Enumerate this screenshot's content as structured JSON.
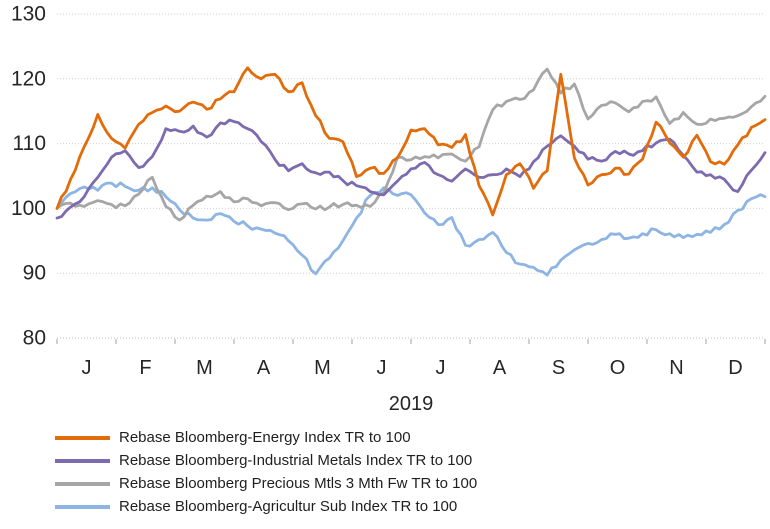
{
  "figure": {
    "background_color": "#ffffff",
    "text_color": "#262626"
  },
  "chart_data": {
    "type": "line",
    "title": "",
    "x_axis": {
      "labels": [
        "J",
        "F",
        "M",
        "A",
        "M",
        "J",
        "J",
        "A",
        "S",
        "O",
        "N",
        "D"
      ],
      "year_label": "2019",
      "tick_count": 13
    },
    "y_axis": {
      "min": 80,
      "max": 130,
      "tick_step": 10,
      "tick_labels": [
        "80",
        "90",
        "100",
        "110",
        "120",
        "130"
      ]
    },
    "grid": "horizontal-dotted",
    "gridline_color": "#cfcfcf",
    "tick_color": "#a0a0a0",
    "legend_position": "bottom-left",
    "sampling": "weekly points, Jan-Dec 2019",
    "series": [
      {
        "name": "Rebase Bloomberg-Energy Index TR to 100",
        "color": "#E36C0A",
        "values": [
          100,
          104.5,
          109.5,
          114.5,
          110.8,
          109.3,
          113,
          114.8,
          115.8,
          115,
          116.4,
          115.3,
          116.9,
          118,
          121.7,
          120,
          120.7,
          118,
          119.4,
          114.3,
          110.8,
          110.3,
          104.9,
          106.2,
          105.4,
          107.8,
          112.1,
          112.3,
          109.8,
          109.4,
          111.4,
          103.5,
          99,
          105.2,
          106.9,
          103.1,
          105.8,
          120.7,
          107.8,
          103.6,
          105.2,
          106.2,
          105.3,
          107.6,
          113.3,
          110.1,
          107.9,
          111.3,
          107.2,
          106.8,
          109.8,
          112.5,
          113.7
        ]
      },
      {
        "name": "Rebase Bloomberg-Industrial Metals Index TR to 100",
        "color": "#7C6BAF",
        "values": [
          98.5,
          100.2,
          101.8,
          104.8,
          107.9,
          108.9,
          106.3,
          108,
          112.3,
          111.9,
          112.7,
          111,
          113.2,
          113.4,
          112.3,
          110.3,
          107.6,
          105.8,
          106.9,
          105.5,
          105.6,
          104.3,
          103.5,
          102.6,
          102.1,
          104.2,
          106.1,
          107.1,
          105.2,
          104.2,
          106.1,
          104.8,
          105.2,
          106.1,
          104.9,
          107.2,
          109.6,
          111.2,
          109.6,
          107.6,
          107.3,
          108.8,
          108.4,
          108.9,
          110.1,
          110.7,
          108.2,
          105.6,
          105.2,
          104.5,
          102.6,
          105.9,
          108.6
        ]
      },
      {
        "name": "Rebase Bloomberg Precious Mtls 3 Mth Fw TR to 100",
        "color": "#A6A6A6",
        "values": [
          100,
          100.8,
          100.3,
          101.2,
          100.6,
          100.4,
          102.2,
          104.8,
          100.3,
          98.2,
          100.5,
          101.9,
          102.6,
          101,
          101.5,
          100.4,
          100.9,
          99.8,
          100.7,
          99.9,
          100.2,
          100.6,
          100.5,
          100.3,
          102.4,
          107.9,
          107.5,
          108,
          107.8,
          108.4,
          107.3,
          109.5,
          115.2,
          116.5,
          116.8,
          118.3,
          121.5,
          117.8,
          119.2,
          113.8,
          115.9,
          116.3,
          114.9,
          116.5,
          117.2,
          113.1,
          114.8,
          113,
          113.8,
          113.9,
          114.3,
          115.7,
          117.3
        ]
      },
      {
        "name": "Rebase Bloomberg-Agricultur Sub Index TR to 100",
        "color": "#8DB4E2",
        "values": [
          100,
          102.3,
          103.3,
          102.8,
          103.9,
          103.4,
          102.8,
          103.2,
          101.8,
          99.8,
          98.5,
          98.2,
          99.2,
          98,
          97.3,
          96.8,
          96.2,
          95,
          92.8,
          89.9,
          92.3,
          95,
          98.5,
          102,
          103.2,
          102,
          102.1,
          99.3,
          97.5,
          98.6,
          94.3,
          95.2,
          96.3,
          93.2,
          91.4,
          90.9,
          89.7,
          92,
          93.6,
          94.6,
          95.2,
          96,
          95.4,
          96.1,
          96.7,
          96.1,
          95.5,
          96,
          96.3,
          97.5,
          99.7,
          101.5,
          101.8
        ]
      }
    ]
  }
}
